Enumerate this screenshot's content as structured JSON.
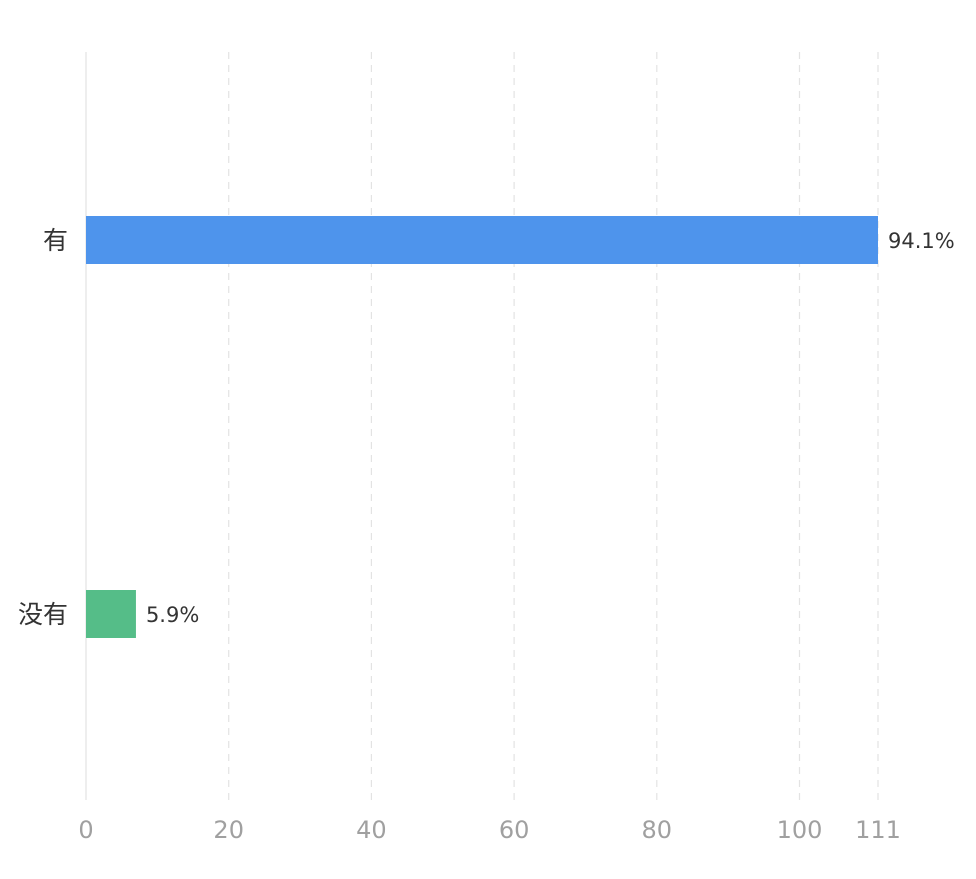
{
  "chart_data": {
    "type": "bar",
    "orientation": "horizontal",
    "categories": [
      "有",
      "没有"
    ],
    "values": [
      111,
      7
    ],
    "data_labels": [
      "94.1%",
      "5.9%"
    ],
    "colors": [
      "#4e94ec",
      "#55bd88"
    ],
    "x_ticks": [
      0,
      20,
      40,
      60,
      80,
      100,
      111
    ],
    "xlim": [
      0,
      111
    ],
    "grid": true,
    "grid_style": "dashed",
    "title": "",
    "xlabel": "",
    "ylabel": ""
  }
}
